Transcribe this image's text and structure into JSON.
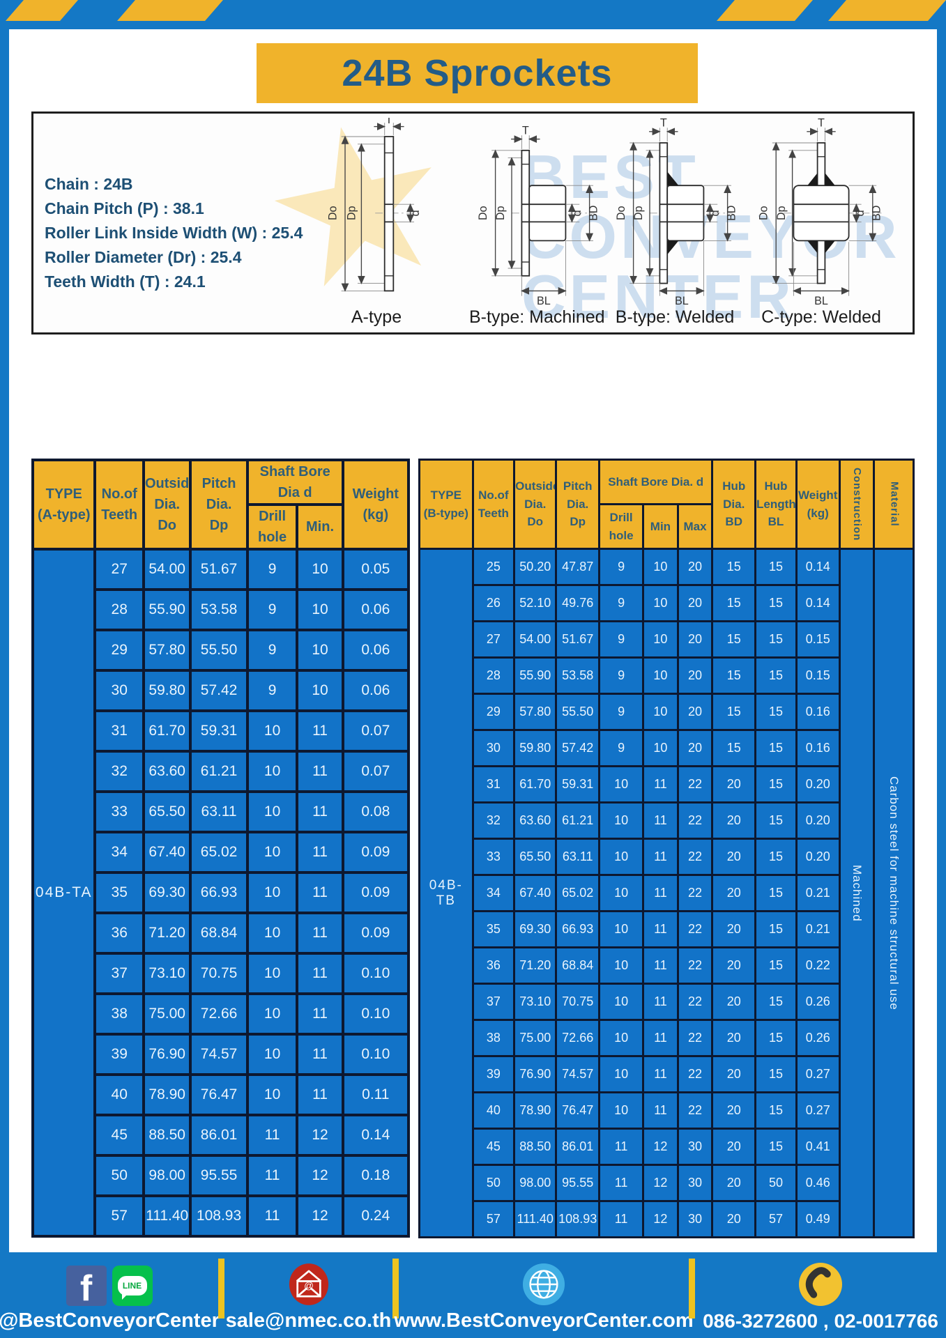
{
  "title": "24B Sprockets",
  "specs": [
    "Chain  : 24B",
    "Chain Pitch (P)  :  38.1",
    "Roller Link Inside Width (W)  :  25.4",
    "Roller Diameter (Dr)  : 25.4",
    "Teeth Width (T)  :  24.1"
  ],
  "diagrams": {
    "watermark": [
      "BEST",
      "CONVEYOR",
      "CENTER"
    ],
    "labels": [
      "A-type",
      "B-type: Machined",
      "B-type: Welded",
      "C-type: Welded"
    ],
    "dims": {
      "outside_dia": "Do",
      "pitch_dia": "Dp",
      "tooth_width": "T",
      "bore": "d",
      "hub_dia": "BD",
      "hub_length": "BL"
    }
  },
  "table_a": {
    "headers": {
      "type": "TYPE\n(A-type)",
      "teeth": "No.of\nTeeth",
      "outside": "Outside\nDia.\nDo",
      "pitch": "Pitch Dia.\nDp",
      "shaft_bore": "Shaft Bore Dia d",
      "drill": "Drill hole",
      "min": "Min.",
      "weight": "Weight\n(kg)"
    },
    "type_label": "04B-TA",
    "rows": [
      [
        "27",
        "54.00",
        "51.67",
        "9",
        "10",
        "0.05"
      ],
      [
        "28",
        "55.90",
        "53.58",
        "9",
        "10",
        "0.06"
      ],
      [
        "29",
        "57.80",
        "55.50",
        "9",
        "10",
        "0.06"
      ],
      [
        "30",
        "59.80",
        "57.42",
        "9",
        "10",
        "0.06"
      ],
      [
        "31",
        "61.70",
        "59.31",
        "10",
        "11",
        "0.07"
      ],
      [
        "32",
        "63.60",
        "61.21",
        "10",
        "11",
        "0.07"
      ],
      [
        "33",
        "65.50",
        "63.11",
        "10",
        "11",
        "0.08"
      ],
      [
        "34",
        "67.40",
        "65.02",
        "10",
        "11",
        "0.09"
      ],
      [
        "35",
        "69.30",
        "66.93",
        "10",
        "11",
        "0.09"
      ],
      [
        "36",
        "71.20",
        "68.84",
        "10",
        "11",
        "0.09"
      ],
      [
        "37",
        "73.10",
        "70.75",
        "10",
        "11",
        "0.10"
      ],
      [
        "38",
        "75.00",
        "72.66",
        "10",
        "11",
        "0.10"
      ],
      [
        "39",
        "76.90",
        "74.57",
        "10",
        "11",
        "0.10"
      ],
      [
        "40",
        "78.90",
        "76.47",
        "10",
        "11",
        "0.11"
      ],
      [
        "45",
        "88.50",
        "86.01",
        "11",
        "12",
        "0.14"
      ],
      [
        "50",
        "98.00",
        "95.55",
        "11",
        "12",
        "0.18"
      ],
      [
        "57",
        "111.40",
        "108.93",
        "11",
        "12",
        "0.24"
      ]
    ]
  },
  "table_b": {
    "headers": {
      "type": "TYPE\n(B-type)",
      "teeth": "No.of\nTeeth",
      "outside": "Outside\nDia.\nDo",
      "pitch": "Pitch\nDia.\nDp",
      "shaft_bore": "Shaft Bore Dia.  d",
      "drill": "Drill hole",
      "min": "Min",
      "max": "Max",
      "hub_dia": "Hub\nDia.\nBD",
      "hub_length": "Hub\nLength\nBL",
      "weight": "Weight\n(kg)",
      "construction": "Construction",
      "material": "Material"
    },
    "type_label": "04B-TB",
    "construction": "Machined",
    "material": "Carbon steel for machine structural use",
    "rows": [
      [
        "25",
        "50.20",
        "47.87",
        "9",
        "10",
        "20",
        "15",
        "15",
        "0.14"
      ],
      [
        "26",
        "52.10",
        "49.76",
        "9",
        "10",
        "20",
        "15",
        "15",
        "0.14"
      ],
      [
        "27",
        "54.00",
        "51.67",
        "9",
        "10",
        "20",
        "15",
        "15",
        "0.15"
      ],
      [
        "28",
        "55.90",
        "53.58",
        "9",
        "10",
        "20",
        "15",
        "15",
        "0.15"
      ],
      [
        "29",
        "57.80",
        "55.50",
        "9",
        "10",
        "20",
        "15",
        "15",
        "0.16"
      ],
      [
        "30",
        "59.80",
        "57.42",
        "9",
        "10",
        "20",
        "15",
        "15",
        "0.16"
      ],
      [
        "31",
        "61.70",
        "59.31",
        "10",
        "11",
        "22",
        "20",
        "15",
        "0.20"
      ],
      [
        "32",
        "63.60",
        "61.21",
        "10",
        "11",
        "22",
        "20",
        "15",
        "0.20"
      ],
      [
        "33",
        "65.50",
        "63.11",
        "10",
        "11",
        "22",
        "20",
        "15",
        "0.20"
      ],
      [
        "34",
        "67.40",
        "65.02",
        "10",
        "11",
        "22",
        "20",
        "15",
        "0.21"
      ],
      [
        "35",
        "69.30",
        "66.93",
        "10",
        "11",
        "22",
        "20",
        "15",
        "0.21"
      ],
      [
        "36",
        "71.20",
        "68.84",
        "10",
        "11",
        "22",
        "20",
        "15",
        "0.22"
      ],
      [
        "37",
        "73.10",
        "70.75",
        "10",
        "11",
        "22",
        "20",
        "15",
        "0.26"
      ],
      [
        "38",
        "75.00",
        "72.66",
        "10",
        "11",
        "22",
        "20",
        "15",
        "0.26"
      ],
      [
        "39",
        "76.90",
        "74.57",
        "10",
        "11",
        "22",
        "20",
        "15",
        "0.27"
      ],
      [
        "40",
        "78.90",
        "76.47",
        "10",
        "11",
        "22",
        "20",
        "15",
        "0.27"
      ],
      [
        "45",
        "88.50",
        "86.01",
        "11",
        "12",
        "30",
        "20",
        "15",
        "0.41"
      ],
      [
        "50",
        "98.00",
        "95.55",
        "11",
        "12",
        "30",
        "20",
        "50",
        "0.46"
      ],
      [
        "57",
        "111.40",
        "108.93",
        "11",
        "12",
        "30",
        "20",
        "57",
        "0.49"
      ]
    ]
  },
  "footer": {
    "fb_letter": "f",
    "line_label": "LINE",
    "social_handle": "@BestConveyorCenter",
    "email": "sale@nmec.co.th",
    "website": "www.BestConveyorCenter.com",
    "phones": "086-3272600 , 02-0017766"
  },
  "colors": {
    "accent_yellow": "#F0B32B",
    "frame_blue": "#1478C5",
    "table_blue": "#1273C8",
    "border_dark": "#0D1830",
    "title_text": "#235C87",
    "header_text": "#2F5E79"
  }
}
